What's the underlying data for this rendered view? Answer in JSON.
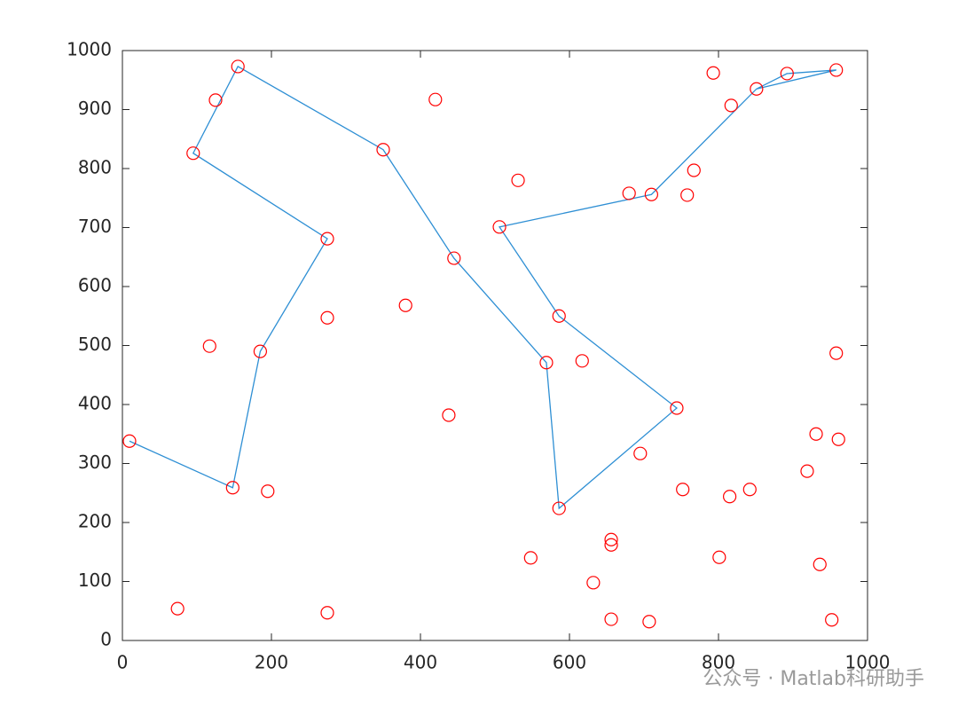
{
  "chart_data": {
    "type": "scatter",
    "xlim": [
      0,
      1000
    ],
    "ylim": [
      0,
      1000
    ],
    "xticks": [
      0,
      200,
      400,
      600,
      800,
      1000
    ],
    "yticks": [
      0,
      100,
      200,
      300,
      400,
      500,
      600,
      700,
      800,
      900,
      1000
    ],
    "box": true,
    "series": [
      {
        "kind": "markers",
        "color": "#ff0000",
        "x": [
          9.5,
          148,
          185,
          275,
          95,
          125,
          155,
          350,
          445,
          569,
          586,
          744,
          586,
          506,
          710,
          817,
          851,
          892,
          958,
          74,
          195,
          275,
          117,
          275,
          380,
          420,
          438,
          531,
          548,
          617,
          632,
          656,
          656,
          656,
          707,
          680,
          695,
          752,
          758,
          767,
          793,
          801,
          815,
          842,
          919,
          931,
          936,
          952,
          958,
          961
        ],
        "y": [
          338,
          259,
          490,
          681,
          826,
          916,
          973,
          832,
          648,
          471,
          224,
          394,
          550,
          701,
          756,
          907,
          935,
          961,
          967,
          54,
          253,
          47,
          499,
          547,
          568,
          917,
          382,
          780,
          140,
          474,
          98,
          171,
          162,
          36,
          32,
          758,
          317,
          256,
          755,
          797,
          962,
          141,
          244,
          256,
          287,
          350,
          129,
          35,
          487,
          341
        ]
      },
      {
        "kind": "line",
        "color": "#2e8fd4",
        "x": [
          9.5,
          148,
          185,
          275,
          95,
          155,
          350,
          445,
          569,
          586,
          744,
          586,
          506,
          710,
          851,
          892,
          958,
          851
        ],
        "y": [
          338,
          259,
          490,
          681,
          826,
          973,
          832,
          648,
          471,
          224,
          394,
          550,
          701,
          756,
          935,
          961,
          967,
          935
        ]
      }
    ]
  },
  "watermark": "公众号 · Matlab科研助手"
}
